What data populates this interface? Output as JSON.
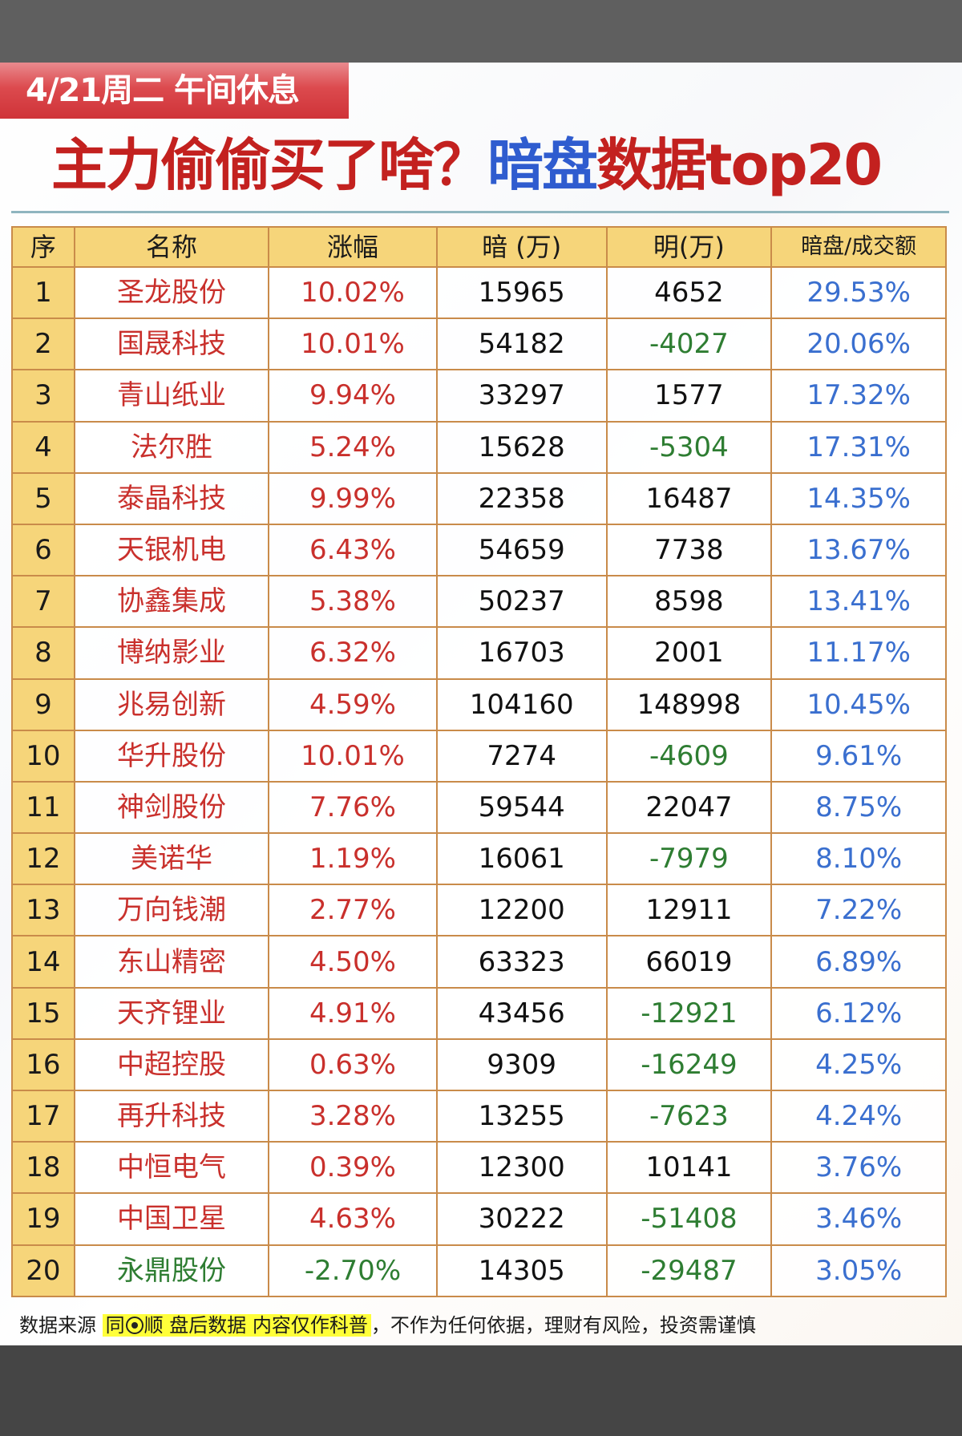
{
  "header": {
    "date_badge": "4/21周二 午间休息",
    "title_part1": "主力偷偷买了啥？",
    "title_part2": "暗盘",
    "title_part3": "数据top20"
  },
  "table": {
    "columns": [
      "序",
      "名称",
      "涨幅",
      "暗 (万)",
      "明(万)",
      "暗盘/成交额"
    ],
    "rows": [
      {
        "idx": "1",
        "name": "圣龙股份",
        "change": "10.02%",
        "dark": "15965",
        "lit": "4652",
        "ratio": "29.53%",
        "up": true,
        "lit_neg": false
      },
      {
        "idx": "2",
        "name": "国晟科技",
        "change": "10.01%",
        "dark": "54182",
        "lit": "-4027",
        "ratio": "20.06%",
        "up": true,
        "lit_neg": true
      },
      {
        "idx": "3",
        "name": "青山纸业",
        "change": "9.94%",
        "dark": "33297",
        "lit": "1577",
        "ratio": "17.32%",
        "up": true,
        "lit_neg": false
      },
      {
        "idx": "4",
        "name": "法尔胜",
        "change": "5.24%",
        "dark": "15628",
        "lit": "-5304",
        "ratio": "17.31%",
        "up": true,
        "lit_neg": true
      },
      {
        "idx": "5",
        "name": "泰晶科技",
        "change": "9.99%",
        "dark": "22358",
        "lit": "16487",
        "ratio": "14.35%",
        "up": true,
        "lit_neg": false
      },
      {
        "idx": "6",
        "name": "天银机电",
        "change": "6.43%",
        "dark": "54659",
        "lit": "7738",
        "ratio": "13.67%",
        "up": true,
        "lit_neg": false
      },
      {
        "idx": "7",
        "name": "协鑫集成",
        "change": "5.38%",
        "dark": "50237",
        "lit": "8598",
        "ratio": "13.41%",
        "up": true,
        "lit_neg": false
      },
      {
        "idx": "8",
        "name": "博纳影业",
        "change": "6.32%",
        "dark": "16703",
        "lit": "2001",
        "ratio": "11.17%",
        "up": true,
        "lit_neg": false
      },
      {
        "idx": "9",
        "name": "兆易创新",
        "change": "4.59%",
        "dark": "104160",
        "lit": "148998",
        "ratio": "10.45%",
        "up": true,
        "lit_neg": false
      },
      {
        "idx": "10",
        "name": "华升股份",
        "change": "10.01%",
        "dark": "7274",
        "lit": "-4609",
        "ratio": "9.61%",
        "up": true,
        "lit_neg": true
      },
      {
        "idx": "11",
        "name": "神剑股份",
        "change": "7.76%",
        "dark": "59544",
        "lit": "22047",
        "ratio": "8.75%",
        "up": true,
        "lit_neg": false
      },
      {
        "idx": "12",
        "name": "美诺华",
        "change": "1.19%",
        "dark": "16061",
        "lit": "-7979",
        "ratio": "8.10%",
        "up": true,
        "lit_neg": true
      },
      {
        "idx": "13",
        "name": "万向钱潮",
        "change": "2.77%",
        "dark": "12200",
        "lit": "12911",
        "ratio": "7.22%",
        "up": true,
        "lit_neg": false
      },
      {
        "idx": "14",
        "name": "东山精密",
        "change": "4.50%",
        "dark": "63323",
        "lit": "66019",
        "ratio": "6.89%",
        "up": true,
        "lit_neg": false
      },
      {
        "idx": "15",
        "name": "天齐锂业",
        "change": "4.91%",
        "dark": "43456",
        "lit": "-12921",
        "ratio": "6.12%",
        "up": true,
        "lit_neg": true
      },
      {
        "idx": "16",
        "name": "中超控股",
        "change": "0.63%",
        "dark": "9309",
        "lit": "-16249",
        "ratio": "4.25%",
        "up": true,
        "lit_neg": true
      },
      {
        "idx": "17",
        "name": "再升科技",
        "change": "3.28%",
        "dark": "13255",
        "lit": "-7623",
        "ratio": "4.24%",
        "up": true,
        "lit_neg": true
      },
      {
        "idx": "18",
        "name": "中恒电气",
        "change": "0.39%",
        "dark": "12300",
        "lit": "10141",
        "ratio": "3.76%",
        "up": true,
        "lit_neg": false
      },
      {
        "idx": "19",
        "name": "中国卫星",
        "change": "4.63%",
        "dark": "30222",
        "lit": "-51408",
        "ratio": "3.46%",
        "up": true,
        "lit_neg": true
      },
      {
        "idx": "20",
        "name": "永鼎股份",
        "change": "-2.70%",
        "dark": "14305",
        "lit": "-29487",
        "ratio": "3.05%",
        "up": false,
        "lit_neg": true
      }
    ]
  },
  "footer": {
    "prefix": "数据来源 ",
    "highlight_a": "同",
    "icon": "flower-logo-icon",
    "highlight_b": "顺  盘后数据  内容仅作科普",
    "suffix": "，不作为任何依据，理财有风险，投资需谨慎"
  },
  "colors": {
    "up_red": "#c9302c",
    "down_green": "#2e7d32",
    "ratio_blue": "#3a6fcf",
    "header_gold": "#f6d57a",
    "border_brown": "#c98b4a",
    "title_blue": "#2f5ccf",
    "title_red": "#c3211f",
    "highlight_yellow": "#ffff3a"
  }
}
